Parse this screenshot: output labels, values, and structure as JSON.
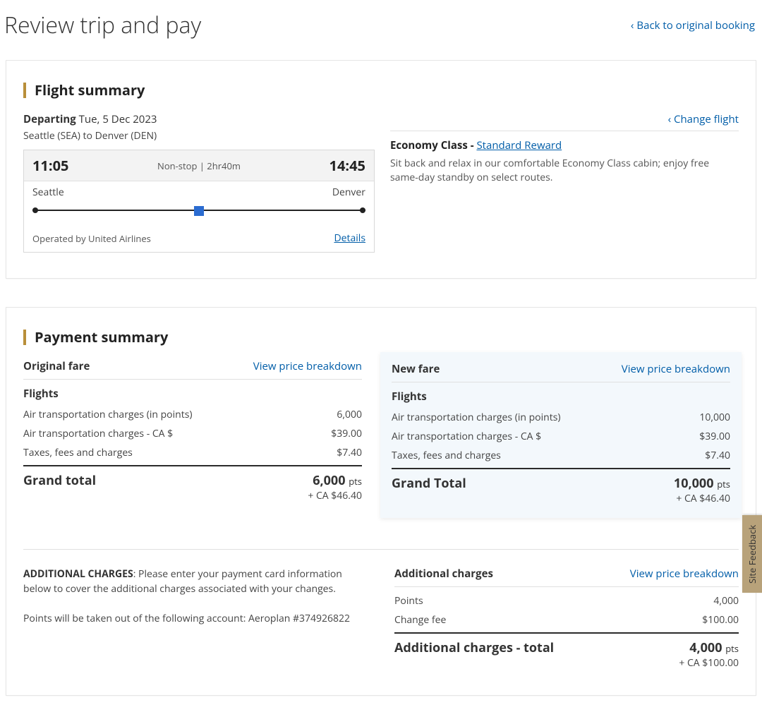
{
  "colors": {
    "accent_bar": "#b98f3a",
    "link": "#005da8",
    "new_fare_bg": "#f3f8fc",
    "feedback_bg": "#b8a27a",
    "marker": "#2b6cd1"
  },
  "header": {
    "title": "Review trip and pay",
    "back_label": "Back to original booking"
  },
  "flight_summary": {
    "section_title": "Flight summary",
    "departing_label": "Departing",
    "departing_date": "Tue, 5 Dec 2023",
    "route": "Seattle (SEA) to Denver (DEN)",
    "change_flight_label": "Change flight",
    "depart_time": "11:05",
    "arrive_time": "14:45",
    "stops_duration": "Non-stop | 2hr40m",
    "origin_city": "Seattle",
    "dest_city": "Denver",
    "operated_by": "Operated by United Airlines",
    "details_label": "Details",
    "cabin_prefix": "Economy Class - ",
    "fare_brand": "Standard Reward",
    "cabin_desc": "Sit back and relax in our comfortable Economy Class cabin; enjoy free same-day standby on select routes."
  },
  "payment": {
    "section_title": "Payment summary",
    "breakdown_label": "View price breakdown",
    "flights_label": "Flights",
    "original": {
      "title": "Original fare",
      "items": [
        {
          "label": "Air transportation charges (in points)",
          "value": "6,000"
        },
        {
          "label": "Air transportation charges - CA $",
          "value": "$39.00"
        },
        {
          "label": "Taxes, fees and charges",
          "value": "$7.40"
        }
      ],
      "grand_label": "Grand total",
      "grand_pts": "6,000",
      "grand_unit": "pts",
      "grand_sub": "+ CA $46.40"
    },
    "new": {
      "title": "New fare",
      "items": [
        {
          "label": "Air transportation charges (in points)",
          "value": "10,000"
        },
        {
          "label": "Air transportation charges - CA $",
          "value": "$39.00"
        },
        {
          "label": "Taxes, fees and charges",
          "value": "$7.40"
        }
      ],
      "grand_label": "Grand Total",
      "grand_pts": "10,000",
      "grand_unit": "pts",
      "grand_sub": "+ CA $46.40"
    }
  },
  "additional": {
    "lead": "ADDITIONAL CHARGES",
    "text": ": Please enter your payment card information below to cover the additional charges associated with your changes.",
    "points_note": "Points will be taken out of the following account: Aeroplan #374926822",
    "title": "Additional charges",
    "breakdown_label": "View price breakdown",
    "items": [
      {
        "label": "Points",
        "value": "4,000"
      },
      {
        "label": "Change fee",
        "value": "$100.00"
      }
    ],
    "total_label": "Additional charges - total",
    "total_pts": "4,000",
    "total_unit": "pts",
    "total_sub": "+ CA $100.00"
  },
  "feedback_label": "Site Feedback"
}
